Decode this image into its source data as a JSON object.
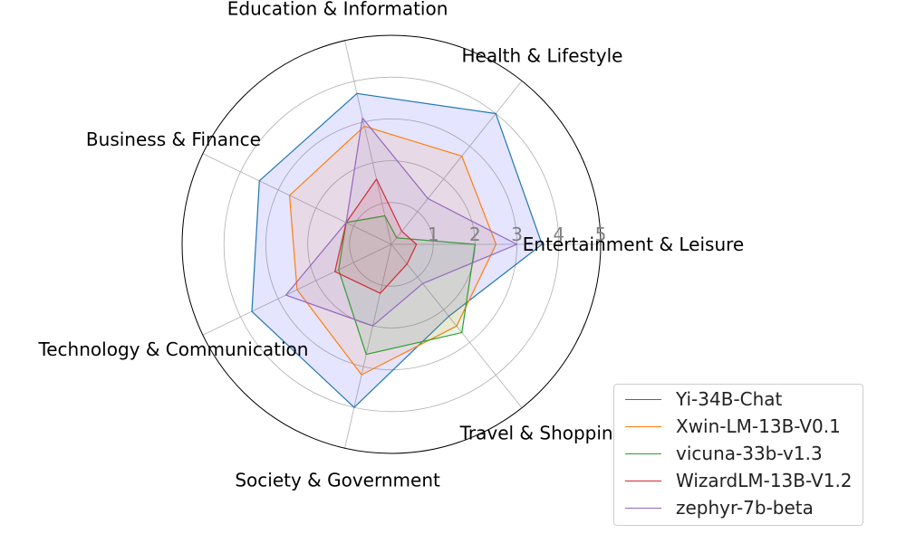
{
  "chart_data": {
    "type": "radar",
    "categories": [
      "Entertainment & Leisure",
      "Health & Lifestyle",
      "Education & Information",
      "Business & Finance",
      "Technology & Communication",
      "Society & Government",
      "Travel & Shopping"
    ],
    "rlim": [
      0,
      5
    ],
    "rticks": [
      "1",
      "2",
      "3",
      "4",
      "5"
    ],
    "grid": true,
    "legend_position": "lower-right",
    "series": [
      {
        "name": "Yi-34B-Chat",
        "color": "#1f77b4",
        "values": [
          3.6,
          4.0,
          3.7,
          3.5,
          3.7,
          4.0,
          2.2
        ]
      },
      {
        "name": "Xwin-LM-13B-V0.1",
        "color": "#ff7f0e",
        "values": [
          2.5,
          2.7,
          2.9,
          2.7,
          2.5,
          3.2,
          2.5
        ]
      },
      {
        "name": "vicuna-33b-v1.3",
        "color": "#2ca02c",
        "values": [
          2.0,
          0.2,
          0.7,
          1.2,
          1.4,
          2.7,
          2.7
        ]
      },
      {
        "name": "WizardLM-13B-V1.2",
        "color": "#d62728",
        "values": [
          0.6,
          0.4,
          1.6,
          1.2,
          1.5,
          1.2,
          0.6
        ]
      },
      {
        "name": "zephyr-7b-beta",
        "color": "#9467bd",
        "values": [
          3.0,
          1.4,
          3.1,
          1.2,
          2.8,
          2.0,
          1.2
        ]
      }
    ],
    "fill_color": "#0000ff"
  }
}
